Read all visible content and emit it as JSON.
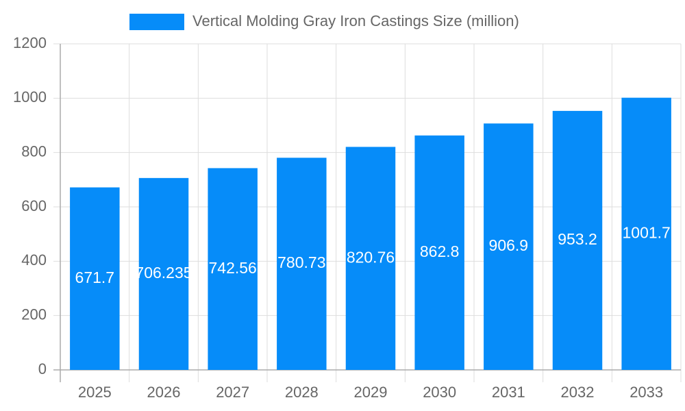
{
  "chart_data": {
    "type": "bar",
    "legend": "Vertical Molding Gray Iron Castings Size (million)",
    "categories": [
      "2025",
      "2026",
      "2027",
      "2028",
      "2029",
      "2030",
      "2031",
      "2032",
      "2033"
    ],
    "values": [
      671.7,
      706.235,
      742.56,
      780.73,
      820.76,
      862.8,
      906.9,
      953.2,
      1001.7
    ],
    "color": "#068cf9",
    "ylim": [
      0,
      1200
    ],
    "yticks": [
      0,
      200,
      400,
      600,
      800,
      1000,
      1200
    ],
    "grid": true
  }
}
